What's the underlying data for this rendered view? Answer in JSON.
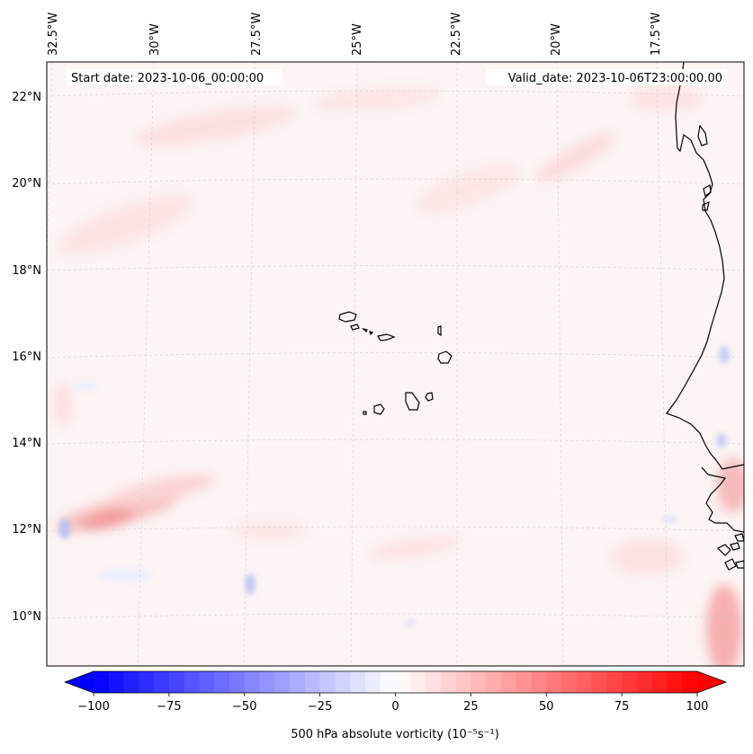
{
  "header": {
    "start_date": "Start date: 2023-10-06_00:00:00",
    "valid_date": "Valid_date: 2023-10-06T23:00:00.00"
  },
  "map": {
    "lon_labels": [
      "32.5°W",
      "30°W",
      "27.5°W",
      "25°W",
      "22.5°W",
      "20°W",
      "17.5°W"
    ],
    "lat_labels": [
      "22°N",
      "20°N",
      "18°N",
      "16°N",
      "14°N",
      "12°N",
      "10°N"
    ],
    "gridlines": "dashed",
    "features": [
      "coastline",
      "cape-verde-islands",
      "west-africa-coast"
    ],
    "field": "500 hPa absolute vorticity",
    "background_color": "#fdf5f5"
  },
  "colorbar": {
    "label": "500 hPa absolute vorticity (10⁻⁵s⁻¹)",
    "ticks": [
      "−100",
      "−75",
      "−50",
      "−25",
      "0",
      "25",
      "50",
      "75",
      "100"
    ],
    "min": -100,
    "max": 100,
    "extend": "both",
    "colormap": "bwr",
    "low_color": "#0000ff",
    "mid_color": "#ffffff",
    "high_color": "#ff0000"
  }
}
